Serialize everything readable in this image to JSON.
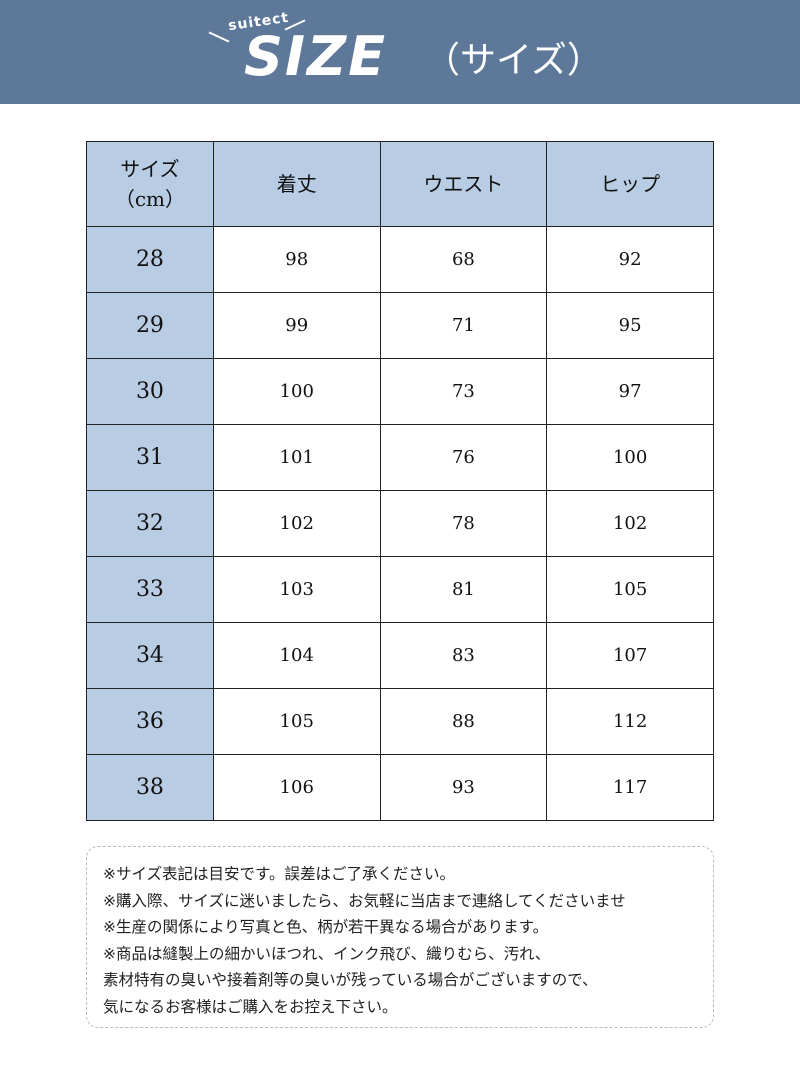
{
  "header": {
    "logo_small": "suitect",
    "logo_big": "SIZE",
    "subtitle": "（サイズ）",
    "background_color": "#5d7899"
  },
  "table": {
    "header_color": "#b8cce4",
    "columns": [
      "サイズ\n（cm）",
      "着丈",
      "ウエスト",
      "ヒップ"
    ],
    "rows": [
      [
        "28",
        "98",
        "68",
        "92"
      ],
      [
        "29",
        "99",
        "71",
        "95"
      ],
      [
        "30",
        "100",
        "73",
        "97"
      ],
      [
        "31",
        "101",
        "76",
        "100"
      ],
      [
        "32",
        "102",
        "78",
        "102"
      ],
      [
        "33",
        "103",
        "81",
        "105"
      ],
      [
        "34",
        "104",
        "83",
        "107"
      ],
      [
        "36",
        "105",
        "88",
        "112"
      ],
      [
        "38",
        "106",
        "93",
        "117"
      ]
    ]
  },
  "notes": [
    "※サイズ表記は目安です。誤差はご了承ください。",
    "※購入際、サイズに迷いましたら、お気軽に当店まで連絡してくださいませ",
    "※生産の関係により写真と色、柄が若干異なる場合があります。",
    "※商品は縫製上の細かいほつれ、インク飛び、織りむら、汚れ、",
    "素材特有の臭いや接着剤等の臭いが残っている場合がございますので、",
    "気になるお客様はご購入をお控え下さい。"
  ]
}
